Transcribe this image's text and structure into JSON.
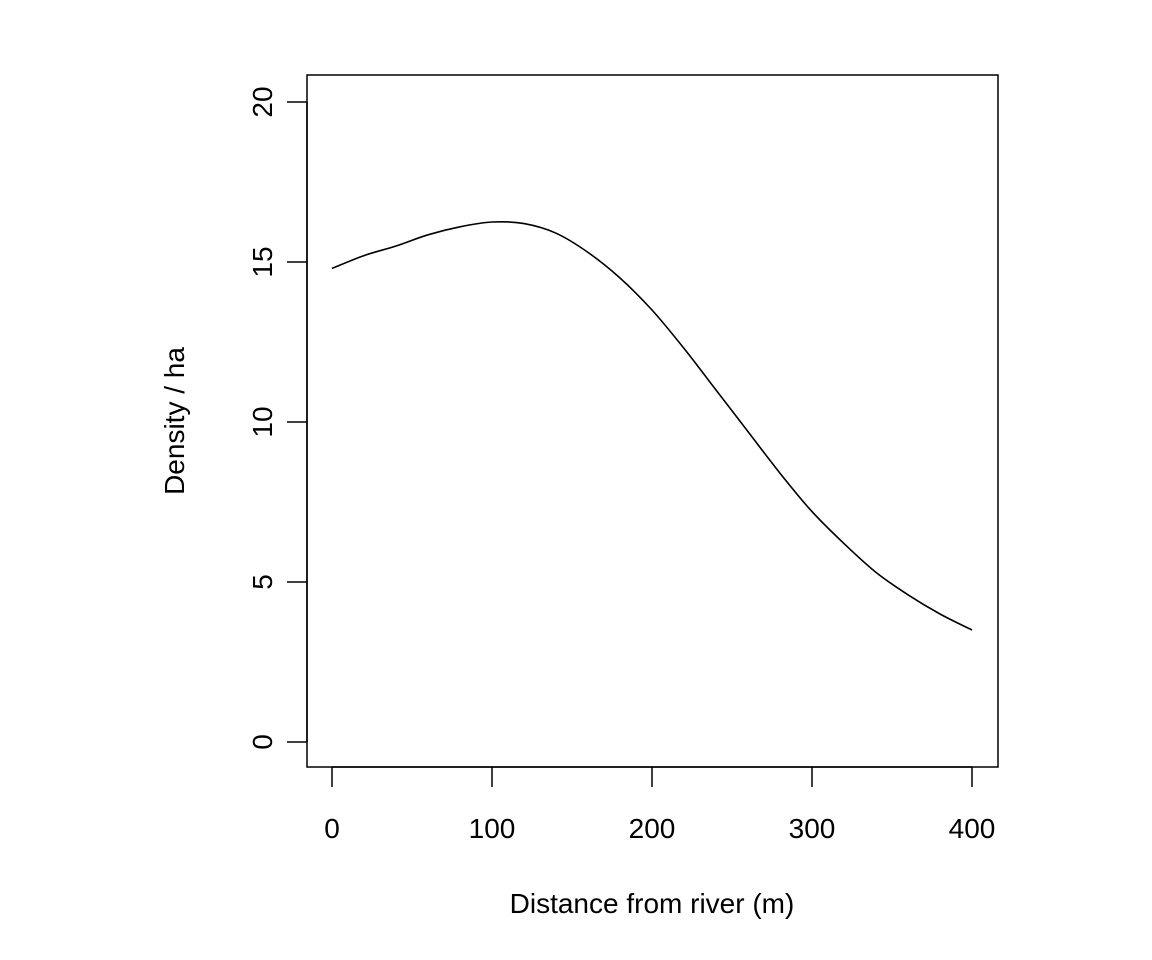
{
  "chart_data": {
    "type": "line",
    "title": "",
    "xlabel": "Distance from river (m)",
    "ylabel": "Density / ha",
    "xlim": [
      0,
      400
    ],
    "ylim": [
      0,
      20
    ],
    "x_ticks": [
      0,
      100,
      200,
      300,
      400
    ],
    "y_ticks": [
      0,
      5,
      10,
      15,
      20
    ],
    "x_tick_labels": [
      "0",
      "100",
      "200",
      "300",
      "400"
    ],
    "y_tick_labels": [
      "0",
      "5",
      "10",
      "15",
      "20"
    ],
    "grid": false,
    "legend": "none",
    "series": [
      {
        "name": "Density",
        "color": "#000000",
        "x": [
          0,
          20,
          40,
          60,
          80,
          100,
          120,
          140,
          160,
          180,
          200,
          220,
          240,
          260,
          280,
          300,
          320,
          340,
          360,
          380,
          400
        ],
        "y": [
          14.8,
          15.2,
          15.5,
          15.85,
          16.1,
          16.25,
          16.2,
          15.9,
          15.3,
          14.5,
          13.5,
          12.3,
          11.0,
          9.7,
          8.4,
          7.2,
          6.2,
          5.3,
          4.6,
          4.0,
          3.5
        ]
      }
    ]
  }
}
